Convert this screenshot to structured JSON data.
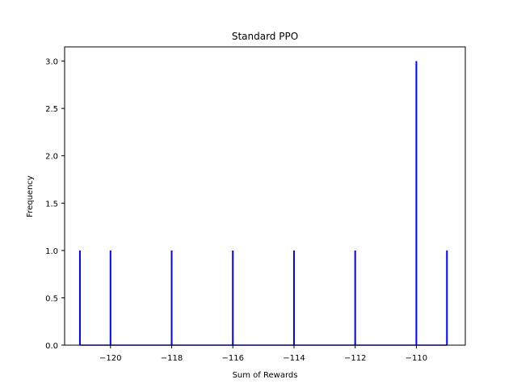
{
  "chart_data": {
    "type": "bar",
    "title": "Standard PPO",
    "xlabel": "Sum of Rewards",
    "ylabel": "Frequency",
    "xlim": [
      -121.5,
      -108.4
    ],
    "ylim": [
      0,
      3.15
    ],
    "x_ticks": [
      -120,
      -118,
      -116,
      -114,
      -112,
      -110
    ],
    "x_tick_labels": [
      "−120",
      "−118",
      "−116",
      "−114",
      "−112",
      "−110"
    ],
    "y_ticks": [
      0,
      0.5,
      1,
      1.5,
      2,
      2.5,
      3
    ],
    "y_tick_labels": [
      "0.0",
      "0.5",
      "1.0",
      "1.5",
      "2.0",
      "2.5",
      "3.0"
    ],
    "grid": false,
    "legend": false,
    "bar_color": "#0000ff",
    "series": [
      {
        "x": [
          -121,
          -120,
          -118,
          -116,
          -114,
          -112,
          -110,
          -109
        ],
        "values": [
          1,
          1,
          1,
          1,
          1,
          1,
          3,
          1
        ]
      }
    ]
  }
}
